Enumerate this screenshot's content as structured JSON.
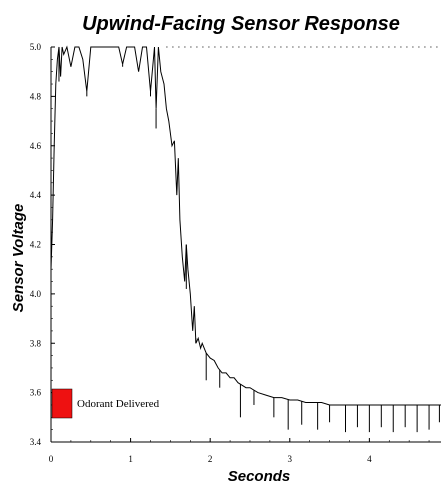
{
  "chart_data": {
    "type": "line",
    "title": "Upwind-Facing Sensor Response",
    "xlabel": "Seconds",
    "ylabel": "Sensor Voltage",
    "xlim": [
      0,
      4.9
    ],
    "ylim": [
      3.4,
      5.0
    ],
    "xticks": [
      "0",
      "1",
      "2",
      "3",
      "4"
    ],
    "yticks": [
      "3.4",
      "3.6",
      "3.8",
      "4.0",
      "4.2",
      "4.4",
      "4.6",
      "4.8",
      "5.0"
    ],
    "grid": false,
    "reference_line": {
      "y": 5.0,
      "style": "dotted"
    },
    "legend": {
      "label": "Odorant Delivered",
      "color": "#ee1111",
      "placement": "bottom-left"
    },
    "series": [
      {
        "color": "#000000",
        "x": [
          0.0,
          0.02,
          0.04,
          0.06,
          0.08,
          0.1,
          0.12,
          0.14,
          0.16,
          0.2,
          0.25,
          0.3,
          0.35,
          0.4,
          0.45,
          0.5,
          0.55,
          0.6,
          0.65,
          0.7,
          0.75,
          0.8,
          0.85,
          0.9,
          0.95,
          1.0,
          1.05,
          1.1,
          1.15,
          1.2,
          1.25,
          1.3,
          1.32,
          1.35,
          1.38,
          1.42,
          1.45,
          1.48,
          1.52,
          1.55,
          1.58,
          1.6,
          1.62,
          1.65,
          1.68,
          1.7,
          1.72,
          1.75,
          1.78,
          1.8,
          1.82,
          1.85,
          1.88,
          1.9,
          1.95,
          2.0,
          2.05,
          2.1,
          2.15,
          2.2,
          2.25,
          2.3,
          2.35,
          2.4,
          2.45,
          2.5,
          2.6,
          2.7,
          2.8,
          2.9,
          3.0,
          3.1,
          3.2,
          3.3,
          3.4,
          3.5,
          3.6,
          3.7,
          3.8,
          3.9,
          4.0,
          4.1,
          4.2,
          4.3,
          4.4,
          4.5,
          4.6,
          4.7,
          4.8,
          4.9
        ],
        "y": [
          4.1,
          4.3,
          4.6,
          4.85,
          4.95,
          5.0,
          4.88,
          5.0,
          4.97,
          5.0,
          4.92,
          5.0,
          5.0,
          4.95,
          4.82,
          5.0,
          5.0,
          5.0,
          5.0,
          5.0,
          5.0,
          5.0,
          5.0,
          4.93,
          5.0,
          5.0,
          5.0,
          4.9,
          5.0,
          5.0,
          4.82,
          5.0,
          4.75,
          5.0,
          4.9,
          4.85,
          4.75,
          4.7,
          4.6,
          4.62,
          4.4,
          4.55,
          4.3,
          4.15,
          4.05,
          4.2,
          4.1,
          4.0,
          3.85,
          3.95,
          3.8,
          3.82,
          3.78,
          3.8,
          3.76,
          3.74,
          3.73,
          3.7,
          3.68,
          3.68,
          3.66,
          3.66,
          3.64,
          3.63,
          3.62,
          3.62,
          3.6,
          3.59,
          3.58,
          3.58,
          3.57,
          3.57,
          3.56,
          3.56,
          3.56,
          3.55,
          3.55,
          3.55,
          3.55,
          3.55,
          3.55,
          3.55,
          3.55,
          3.55,
          3.55,
          3.55,
          3.55,
          3.55,
          3.55,
          3.55
        ]
      }
    ],
    "spikes": [
      {
        "x": 0.1,
        "y": 4.86
      },
      {
        "x": 0.45,
        "y": 4.8
      },
      {
        "x": 0.9,
        "y": 4.92
      },
      {
        "x": 1.1,
        "y": 4.9
      },
      {
        "x": 1.25,
        "y": 4.8
      },
      {
        "x": 1.32,
        "y": 4.67
      },
      {
        "x": 1.42,
        "y": 4.85
      },
      {
        "x": 1.7,
        "y": 4.02
      },
      {
        "x": 1.82,
        "y": 3.82
      },
      {
        "x": 1.95,
        "y": 3.65
      },
      {
        "x": 2.12,
        "y": 3.62
      },
      {
        "x": 2.38,
        "y": 3.5
      },
      {
        "x": 2.55,
        "y": 3.55
      },
      {
        "x": 2.8,
        "y": 3.5
      },
      {
        "x": 2.98,
        "y": 3.45
      },
      {
        "x": 3.15,
        "y": 3.47
      },
      {
        "x": 3.35,
        "y": 3.45
      },
      {
        "x": 3.5,
        "y": 3.48
      },
      {
        "x": 3.7,
        "y": 3.44
      },
      {
        "x": 3.85,
        "y": 3.46
      },
      {
        "x": 4.0,
        "y": 3.44
      },
      {
        "x": 4.15,
        "y": 3.46
      },
      {
        "x": 4.3,
        "y": 3.44
      },
      {
        "x": 4.45,
        "y": 3.46
      },
      {
        "x": 4.6,
        "y": 3.44
      },
      {
        "x": 4.75,
        "y": 3.45
      },
      {
        "x": 4.88,
        "y": 3.48
      }
    ]
  }
}
